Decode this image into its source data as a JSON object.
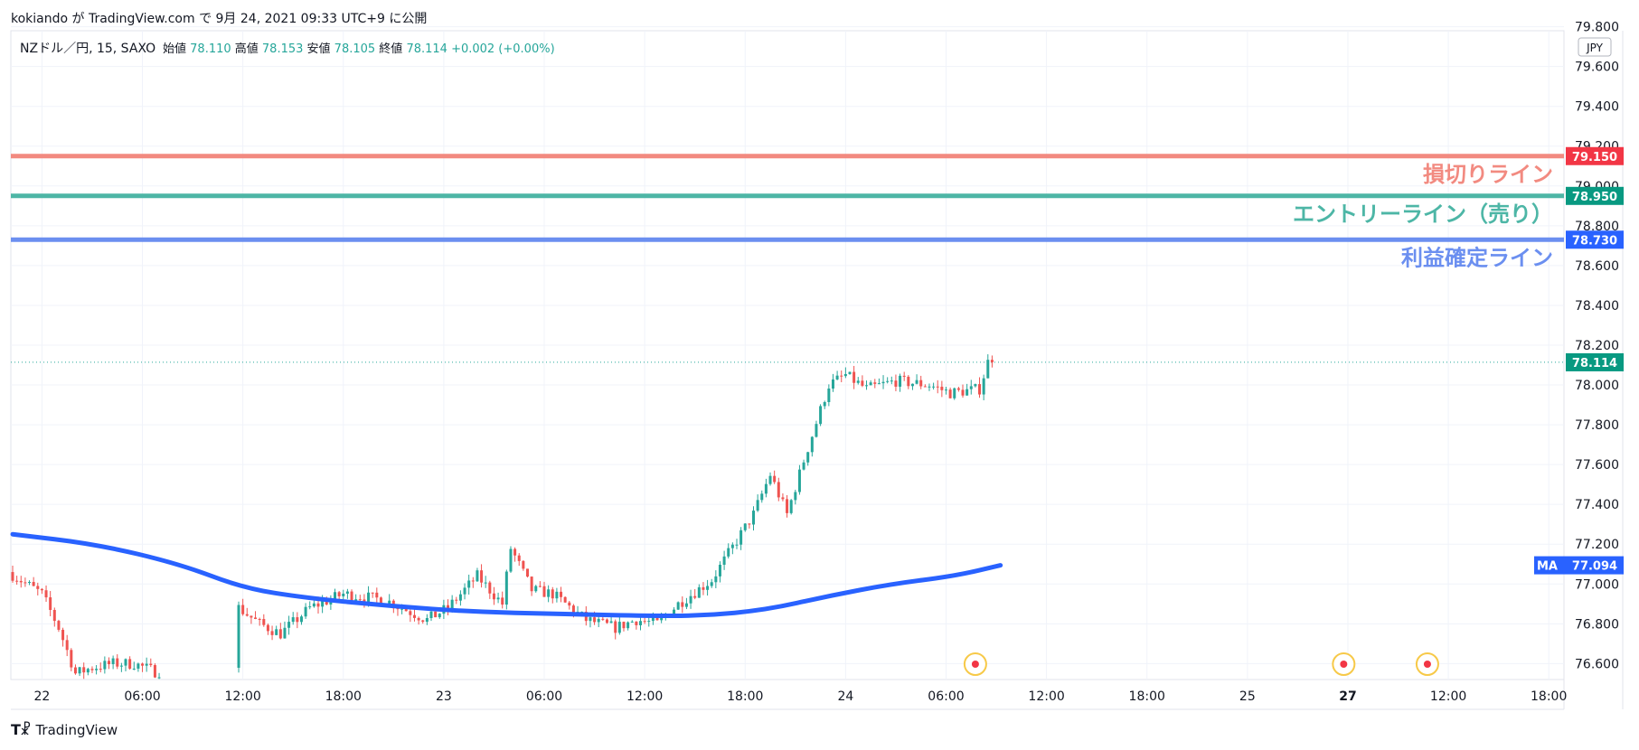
{
  "header": {
    "text": "kokiando が TradingView.com で 9月 24, 2021 09:33 UTC+9 に公開"
  },
  "legend": {
    "symbol": "NZドル／円, 15, SAXO",
    "open_label": "始値",
    "open": "78.110",
    "high_label": "高値",
    "high": "78.153",
    "low_label": "安値",
    "low": "78.105",
    "close_label": "終値",
    "close": "78.114",
    "change": "+0.002 (+0.00%)"
  },
  "currency_badge": "JPY",
  "footer": {
    "brand": "TradingView"
  },
  "colors": {
    "up": "#26a69a",
    "down": "#ef5350",
    "ma": "#2962ff",
    "stop": "#f28a80",
    "entry": "#4db6a6",
    "target": "#6b8ff0",
    "stop_tag": "#f23645",
    "entry_tag": "#089981",
    "target_tag": "#2962ff"
  },
  "chart_data": {
    "type": "candlestick",
    "y_range": [
      76.52,
      79.78
    ],
    "y_ticks": [
      "76.600",
      "76.800",
      "77.000",
      "77.200",
      "77.400",
      "77.600",
      "77.800",
      "78.000",
      "78.200",
      "78.400",
      "78.600",
      "78.800",
      "79.000",
      "79.200",
      "79.400",
      "79.600",
      "79.800"
    ],
    "x_ticks": [
      {
        "label": "22",
        "i": 7,
        "bold": false
      },
      {
        "label": "06:00",
        "i": 31,
        "bold": false
      },
      {
        "label": "12:00",
        "i": 55,
        "bold": false
      },
      {
        "label": "18:00",
        "i": 79,
        "bold": false
      },
      {
        "label": "23",
        "i": 103,
        "bold": false
      },
      {
        "label": "06:00",
        "i": 127,
        "bold": false
      },
      {
        "label": "12:00",
        "i": 151,
        "bold": false
      },
      {
        "label": "18:00",
        "i": 175,
        "bold": false
      },
      {
        "label": "24",
        "i": 199,
        "bold": false
      },
      {
        "label": "06:00",
        "i": 223,
        "bold": false
      },
      {
        "label": "12:00",
        "i": 247,
        "bold": false
      },
      {
        "label": "18:00",
        "i": 271,
        "bold": false
      },
      {
        "label": "25",
        "i": 295,
        "bold": false
      },
      {
        "label": "27",
        "i": 319,
        "bold": true
      },
      {
        "label": "12:00",
        "i": 343,
        "bold": false
      },
      {
        "label": "18:00",
        "i": 367,
        "bold": false
      }
    ],
    "hlines": [
      {
        "name": "損切りライン",
        "value": 79.15,
        "tag": "79.150",
        "color_key": "stop"
      },
      {
        "name": "エントリーライン（売り）",
        "value": 78.95,
        "tag": "78.950",
        "color_key": "entry"
      },
      {
        "name": "利益確定ライン",
        "value": 78.73,
        "tag": "78.730",
        "color_key": "target"
      }
    ],
    "last_price": {
      "value": 78.114,
      "label": "78.114"
    },
    "ma": {
      "name": "MA",
      "label": "77.094",
      "value": 77.094,
      "points": [
        [
          0,
          77.25
        ],
        [
          20,
          77.2
        ],
        [
          40,
          77.1
        ],
        [
          55,
          76.98
        ],
        [
          70,
          76.93
        ],
        [
          90,
          76.89
        ],
        [
          110,
          76.86
        ],
        [
          130,
          76.85
        ],
        [
          150,
          76.84
        ],
        [
          165,
          76.84
        ],
        [
          180,
          76.87
        ],
        [
          195,
          76.94
        ],
        [
          210,
          77.0
        ],
        [
          225,
          77.04
        ],
        [
          236,
          77.094
        ]
      ]
    },
    "events": [
      {
        "i": 230
      },
      {
        "i": 318
      },
      {
        "i": 338
      }
    ],
    "candles_anchor": [
      [
        0,
        77.06
      ],
      [
        8,
        76.95
      ],
      [
        12,
        76.78
      ],
      [
        16,
        76.55
      ],
      [
        20,
        76.58
      ],
      [
        25,
        76.6
      ],
      [
        30,
        76.6
      ],
      [
        35,
        76.56
      ],
      [
        54,
        76.58
      ],
      [
        55,
        76.88
      ],
      [
        60,
        76.8
      ],
      [
        65,
        76.75
      ],
      [
        72,
        76.88
      ],
      [
        80,
        76.95
      ],
      [
        90,
        76.92
      ],
      [
        100,
        76.82
      ],
      [
        105,
        76.88
      ],
      [
        112,
        77.04
      ],
      [
        118,
        76.9
      ],
      [
        120,
        77.18
      ],
      [
        125,
        76.97
      ],
      [
        130,
        76.95
      ],
      [
        138,
        76.82
      ],
      [
        145,
        76.78
      ],
      [
        150,
        76.82
      ],
      [
        155,
        76.8
      ],
      [
        160,
        76.9
      ],
      [
        168,
        77.02
      ],
      [
        178,
        77.35
      ],
      [
        182,
        77.55
      ],
      [
        186,
        77.35
      ],
      [
        190,
        77.62
      ],
      [
        196,
        78.0
      ],
      [
        200,
        78.05
      ],
      [
        205,
        77.98
      ],
      [
        212,
        78.02
      ],
      [
        220,
        78.0
      ],
      [
        225,
        77.96
      ],
      [
        232,
        77.98
      ],
      [
        234,
        78.114
      ]
    ]
  }
}
